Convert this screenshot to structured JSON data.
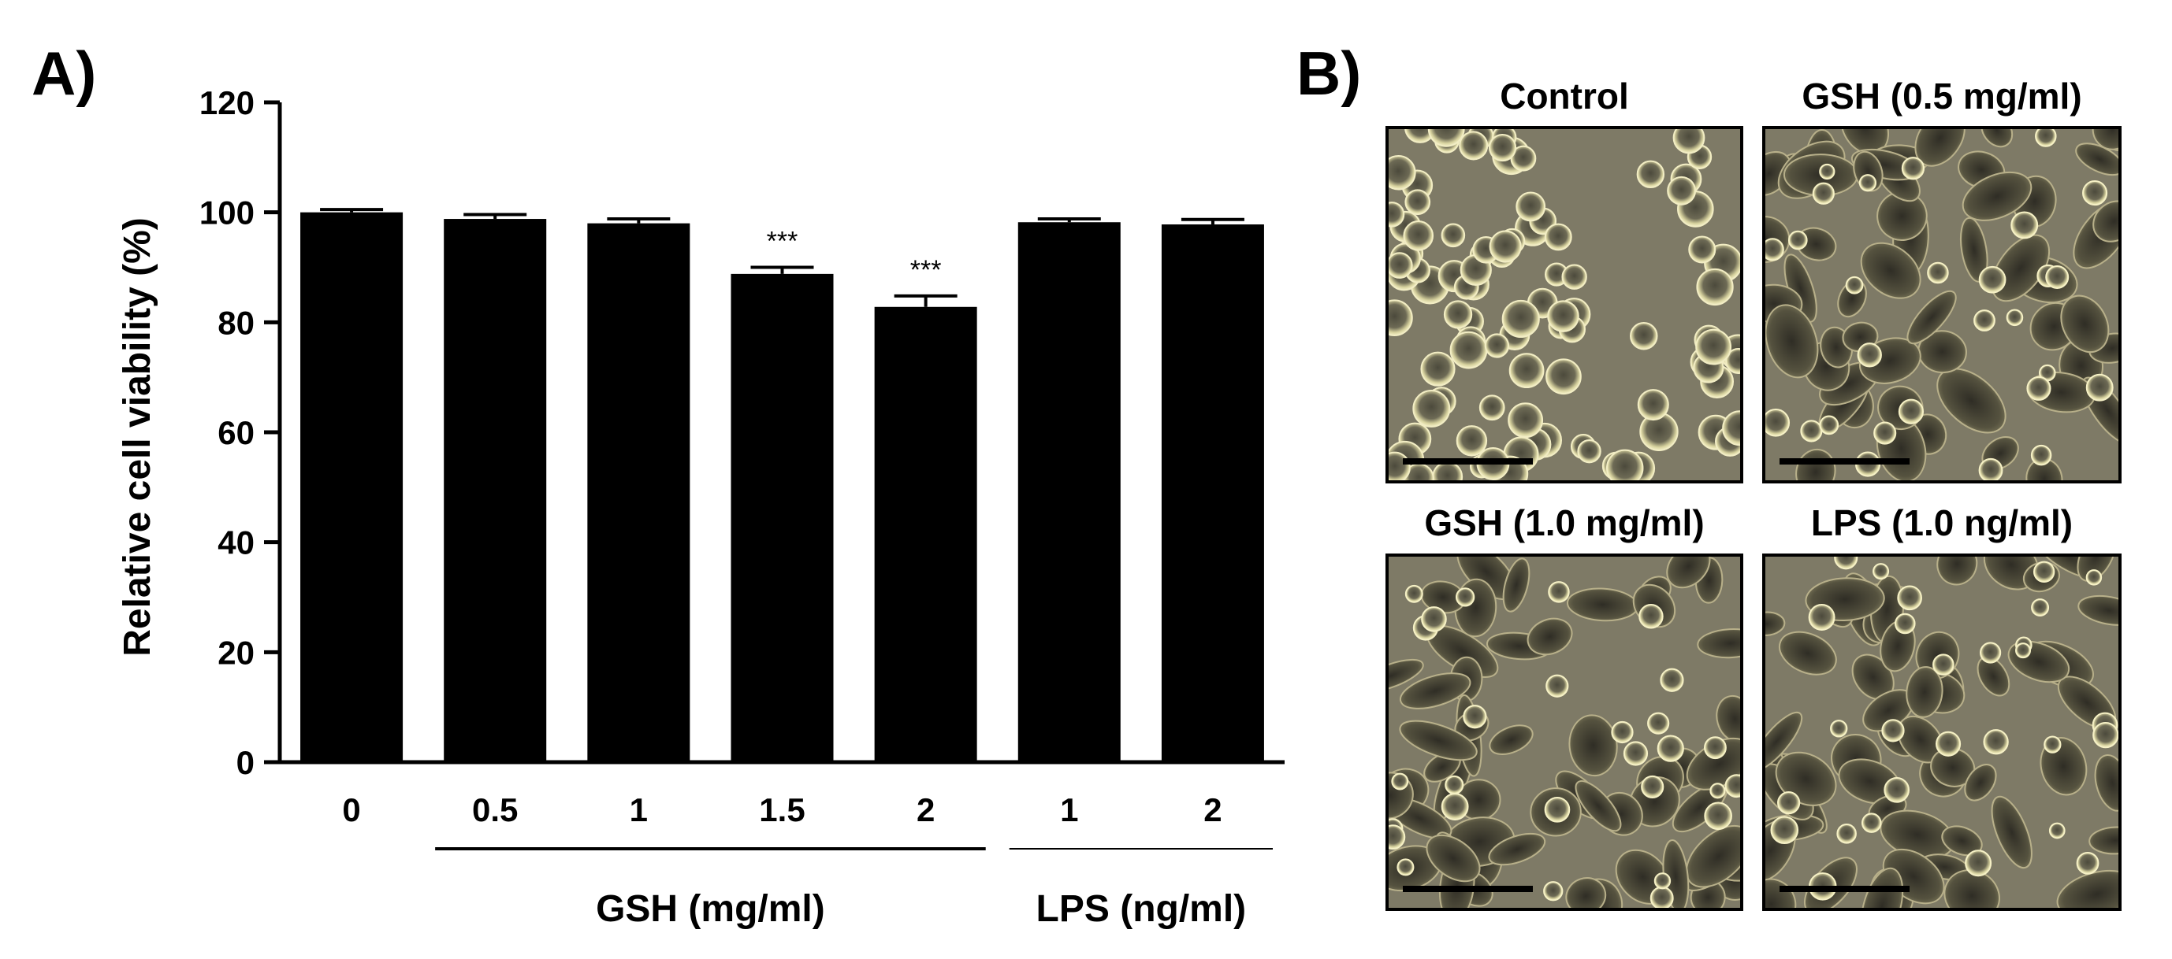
{
  "panel_a": {
    "letter": "A)"
  },
  "panel_b": {
    "letter": "B)",
    "images": [
      {
        "title": "Control",
        "description_icon": "micrograph-control"
      },
      {
        "title": "GSH (0.5 mg/ml)",
        "description_icon": "micrograph-gsh-0.5"
      },
      {
        "title": "GSH (1.0 mg/ml)",
        "description_icon": "micrograph-gsh-1.0"
      },
      {
        "title": "LPS (1.0 ng/ml)",
        "description_icon": "micrograph-lps-1.0"
      }
    ]
  },
  "chart_data": {
    "type": "bar",
    "ylabel": "Relative cell viability (%)",
    "ylim": [
      0,
      120
    ],
    "yticks": [
      "0",
      "20",
      "40",
      "60",
      "80",
      "100",
      "120"
    ],
    "categories": [
      "0",
      "0.5",
      "1",
      "1.5",
      "2",
      "1",
      "2"
    ],
    "values": [
      100,
      98.8,
      98.0,
      88.8,
      82.8,
      98.2,
      97.8
    ],
    "errors": [
      0.5,
      0.8,
      0.8,
      1.2,
      2.0,
      0.6,
      0.9
    ],
    "annotations": [
      "",
      "",
      "",
      "***",
      "***",
      "",
      ""
    ],
    "groups": [
      {
        "label": "GSH (mg/ml)",
        "start": 1,
        "end": 4
      },
      {
        "label": "LPS (ng/ml)",
        "start": 5,
        "end": 6
      }
    ],
    "bar_color": "#000000",
    "grid": false
  }
}
